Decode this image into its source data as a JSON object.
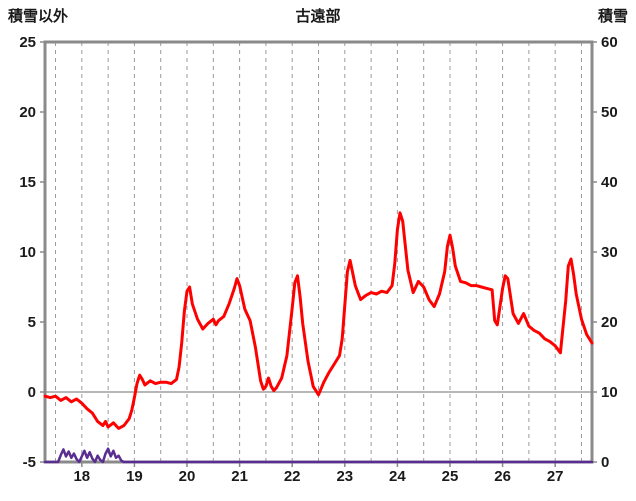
{
  "header": {
    "left_axis_title": "積雪以外",
    "title": "古遠部",
    "right_axis_title": "積雪"
  },
  "chart_data": {
    "type": "line",
    "title": "古遠部",
    "station": "古遠部",
    "left_axis": {
      "label": "積雪以外",
      "min": -5,
      "max": 25,
      "ticks": [
        25,
        20,
        15,
        10,
        5,
        0,
        -5
      ]
    },
    "right_axis": {
      "label": "積雪",
      "min": 0,
      "max": 60,
      "ticks": [
        60,
        50,
        40,
        30,
        20,
        10,
        0
      ]
    },
    "x_axis": {
      "min": 17.3,
      "max": 27.7,
      "ticks": [
        18,
        19,
        20,
        21,
        22,
        23,
        24,
        25,
        26,
        27
      ],
      "grid_start": 17.5,
      "grid_end": 27.5,
      "grid_interval": 0.5
    },
    "zero_line_left_value": 0,
    "grid": "vertical-dashed",
    "legend_position": "none",
    "colors": {
      "frame": "#8a8a8a",
      "gridline": "#9a9a9a",
      "zero_line": "#8a8a8a",
      "text": "#1a1a1a",
      "series_left": "#ff0000",
      "series_right": "#5a2d91"
    },
    "series": [
      {
        "name": "積雪以外",
        "axis": "left",
        "color": "#ff0000",
        "points": [
          [
            17.3,
            -0.3
          ],
          [
            17.4,
            -0.4
          ],
          [
            17.5,
            -0.3
          ],
          [
            17.6,
            -0.6
          ],
          [
            17.7,
            -0.4
          ],
          [
            17.8,
            -0.7
          ],
          [
            17.9,
            -0.5
          ],
          [
            18.0,
            -0.8
          ],
          [
            18.1,
            -1.2
          ],
          [
            18.2,
            -1.5
          ],
          [
            18.3,
            -2.1
          ],
          [
            18.4,
            -2.4
          ],
          [
            18.45,
            -2.1
          ],
          [
            18.5,
            -2.5
          ],
          [
            18.6,
            -2.2
          ],
          [
            18.7,
            -2.6
          ],
          [
            18.8,
            -2.4
          ],
          [
            18.9,
            -1.9
          ],
          [
            18.95,
            -1.3
          ],
          [
            19.0,
            -0.4
          ],
          [
            19.05,
            0.6
          ],
          [
            19.1,
            1.2
          ],
          [
            19.15,
            0.9
          ],
          [
            19.2,
            0.5
          ],
          [
            19.3,
            0.8
          ],
          [
            19.4,
            0.6
          ],
          [
            19.5,
            0.7
          ],
          [
            19.6,
            0.7
          ],
          [
            19.7,
            0.6
          ],
          [
            19.8,
            0.9
          ],
          [
            19.85,
            1.8
          ],
          [
            19.9,
            3.5
          ],
          [
            19.95,
            5.8
          ],
          [
            20.0,
            7.2
          ],
          [
            20.05,
            7.5
          ],
          [
            20.1,
            6.3
          ],
          [
            20.2,
            5.2
          ],
          [
            20.3,
            4.5
          ],
          [
            20.4,
            4.9
          ],
          [
            20.5,
            5.2
          ],
          [
            20.55,
            4.8
          ],
          [
            20.6,
            5.1
          ],
          [
            20.7,
            5.4
          ],
          [
            20.8,
            6.3
          ],
          [
            20.9,
            7.4
          ],
          [
            20.95,
            8.1
          ],
          [
            21.0,
            7.6
          ],
          [
            21.1,
            5.9
          ],
          [
            21.2,
            5.1
          ],
          [
            21.3,
            3.2
          ],
          [
            21.4,
            0.8
          ],
          [
            21.45,
            0.2
          ],
          [
            21.5,
            0.4
          ],
          [
            21.55,
            1.0
          ],
          [
            21.6,
            0.4
          ],
          [
            21.65,
            0.1
          ],
          [
            21.7,
            0.3
          ],
          [
            21.8,
            1.0
          ],
          [
            21.9,
            2.6
          ],
          [
            22.0,
            6.0
          ],
          [
            22.05,
            7.8
          ],
          [
            22.1,
            8.3
          ],
          [
            22.15,
            6.8
          ],
          [
            22.2,
            4.9
          ],
          [
            22.3,
            2.2
          ],
          [
            22.4,
            0.4
          ],
          [
            22.5,
            -0.2
          ],
          [
            22.6,
            0.7
          ],
          [
            22.7,
            1.4
          ],
          [
            22.8,
            2.0
          ],
          [
            22.9,
            2.6
          ],
          [
            22.95,
            3.8
          ],
          [
            23.0,
            6.2
          ],
          [
            23.05,
            8.6
          ],
          [
            23.1,
            9.4
          ],
          [
            23.2,
            7.6
          ],
          [
            23.3,
            6.6
          ],
          [
            23.4,
            6.9
          ],
          [
            23.5,
            7.1
          ],
          [
            23.6,
            7.0
          ],
          [
            23.7,
            7.2
          ],
          [
            23.8,
            7.1
          ],
          [
            23.9,
            7.6
          ],
          [
            23.95,
            9.2
          ],
          [
            24.0,
            11.6
          ],
          [
            24.05,
            12.8
          ],
          [
            24.1,
            12.2
          ],
          [
            24.2,
            8.7
          ],
          [
            24.3,
            7.1
          ],
          [
            24.4,
            7.9
          ],
          [
            24.5,
            7.5
          ],
          [
            24.6,
            6.6
          ],
          [
            24.7,
            6.1
          ],
          [
            24.8,
            7.0
          ],
          [
            24.9,
            8.6
          ],
          [
            24.95,
            10.4
          ],
          [
            25.0,
            11.2
          ],
          [
            25.05,
            10.3
          ],
          [
            25.1,
            9.0
          ],
          [
            25.2,
            7.9
          ],
          [
            25.3,
            7.8
          ],
          [
            25.4,
            7.6
          ],
          [
            25.5,
            7.6
          ],
          [
            25.6,
            7.5
          ],
          [
            25.7,
            7.4
          ],
          [
            25.8,
            7.3
          ],
          [
            25.85,
            5.1
          ],
          [
            25.9,
            4.8
          ],
          [
            26.0,
            7.4
          ],
          [
            26.05,
            8.3
          ],
          [
            26.1,
            8.1
          ],
          [
            26.2,
            5.6
          ],
          [
            26.3,
            4.9
          ],
          [
            26.4,
            5.6
          ],
          [
            26.5,
            4.7
          ],
          [
            26.6,
            4.4
          ],
          [
            26.7,
            4.2
          ],
          [
            26.8,
            3.8
          ],
          [
            26.9,
            3.6
          ],
          [
            27.0,
            3.3
          ],
          [
            27.1,
            2.8
          ],
          [
            27.2,
            6.5
          ],
          [
            27.25,
            9.0
          ],
          [
            27.3,
            9.5
          ],
          [
            27.35,
            8.4
          ],
          [
            27.4,
            7.0
          ],
          [
            27.5,
            5.2
          ],
          [
            27.6,
            4.1
          ],
          [
            27.7,
            3.5
          ]
        ]
      },
      {
        "name": "積雪",
        "axis": "right",
        "color": "#5a2d91",
        "points": [
          [
            17.3,
            0
          ],
          [
            17.55,
            0
          ],
          [
            17.6,
            1.0
          ],
          [
            17.65,
            1.8
          ],
          [
            17.7,
            0.8
          ],
          [
            17.75,
            1.5
          ],
          [
            17.8,
            0.6
          ],
          [
            17.85,
            1.2
          ],
          [
            17.9,
            0.4
          ],
          [
            17.95,
            0
          ],
          [
            18.0,
            0.8
          ],
          [
            18.05,
            1.6
          ],
          [
            18.1,
            0.6
          ],
          [
            18.15,
            1.4
          ],
          [
            18.2,
            0.5
          ],
          [
            18.25,
            0
          ],
          [
            18.3,
            0.9
          ],
          [
            18.35,
            0.3
          ],
          [
            18.4,
            0
          ],
          [
            18.45,
            1.2
          ],
          [
            18.5,
            1.9
          ],
          [
            18.55,
            0.8
          ],
          [
            18.6,
            1.6
          ],
          [
            18.65,
            0.6
          ],
          [
            18.7,
            0.9
          ],
          [
            18.75,
            0.2
          ],
          [
            18.8,
            0
          ],
          [
            19.5,
            0
          ],
          [
            20.5,
            0
          ],
          [
            21.5,
            0
          ],
          [
            22.5,
            0
          ],
          [
            23.5,
            0
          ],
          [
            24.5,
            0
          ],
          [
            25.5,
            0
          ],
          [
            26.5,
            0
          ],
          [
            27.7,
            0
          ]
        ]
      }
    ]
  }
}
